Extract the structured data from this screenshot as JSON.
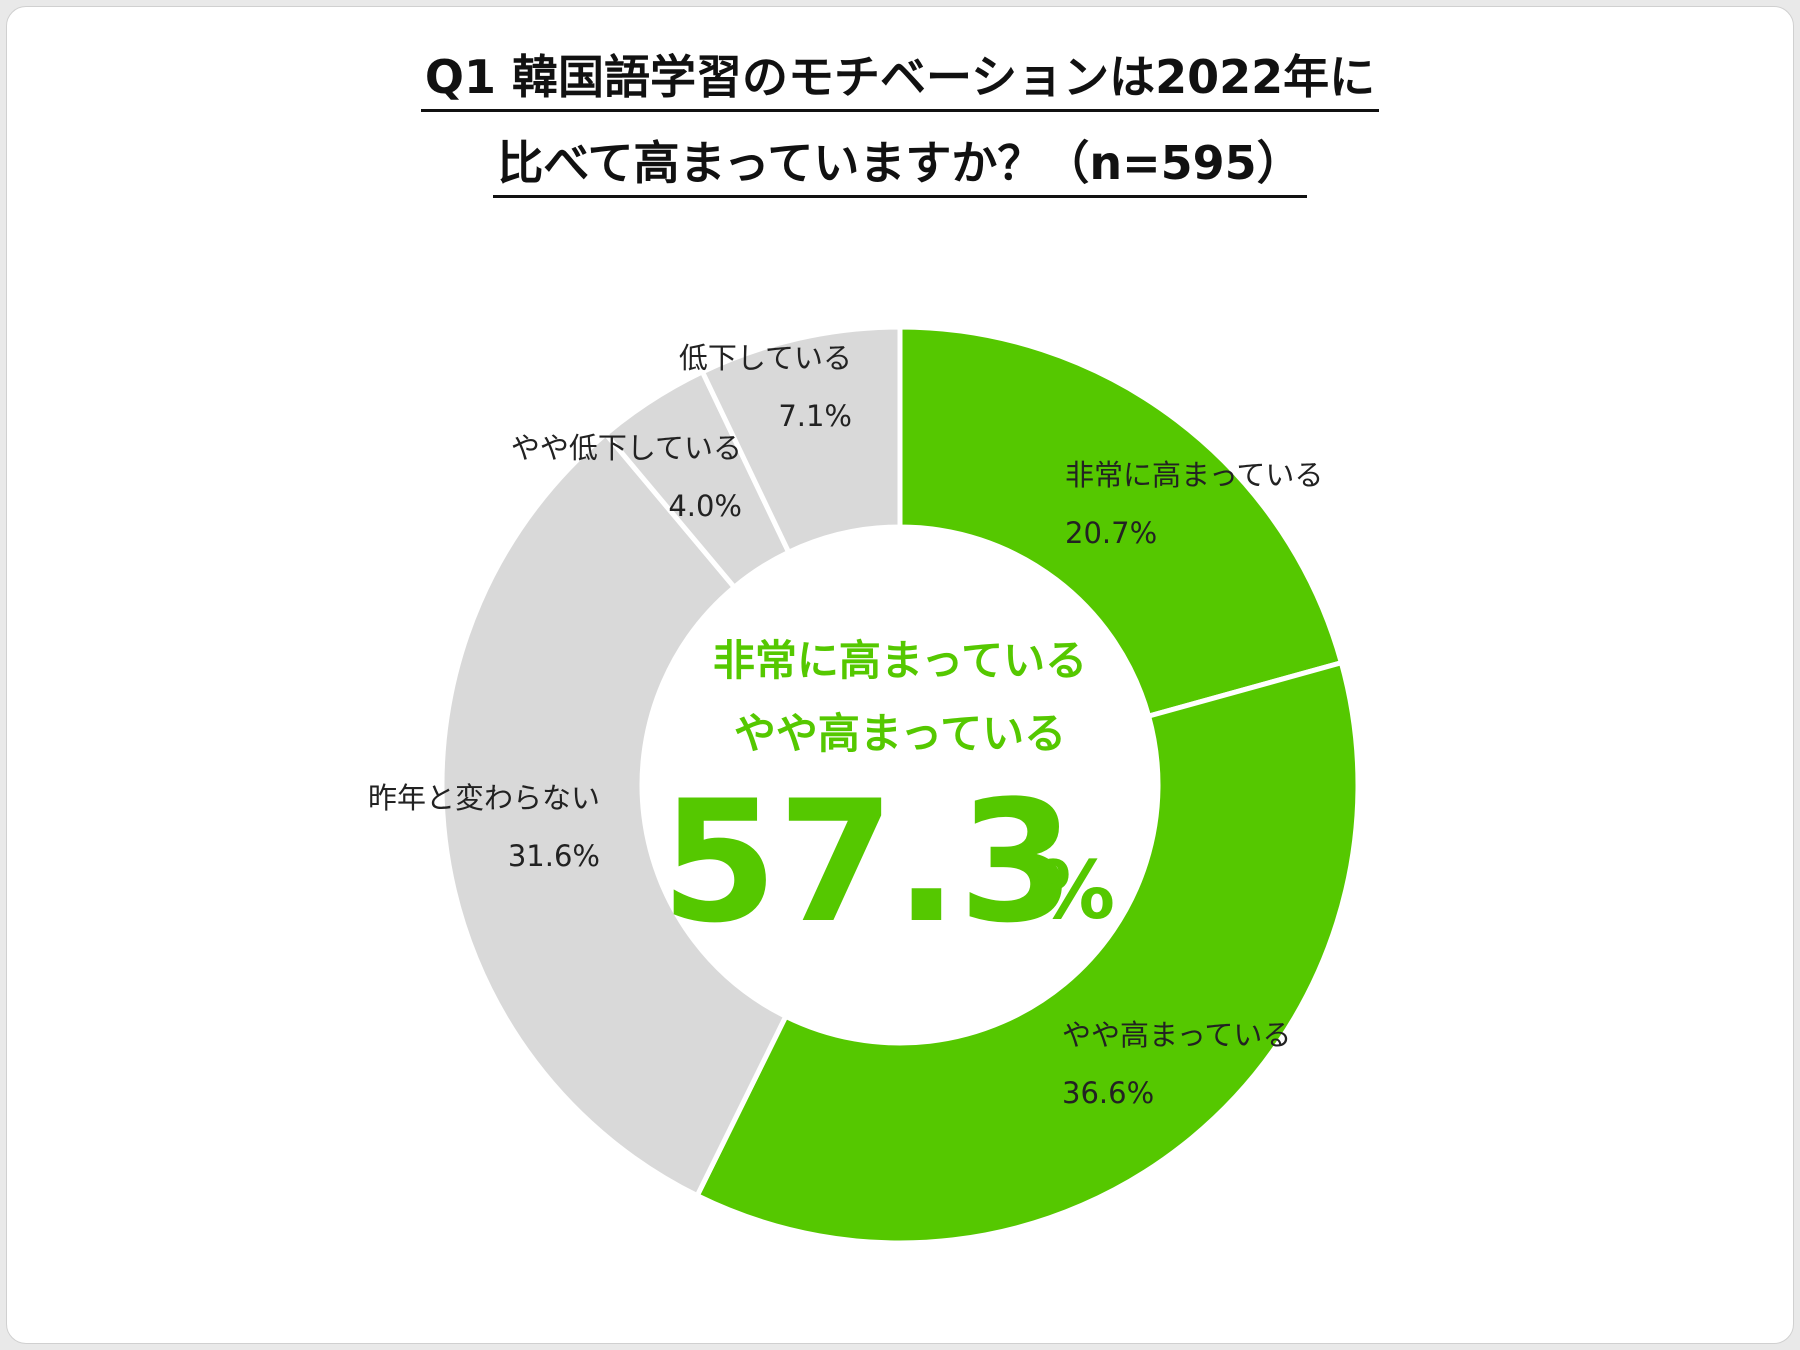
{
  "title_line1": "Q1 韓国語学習のモチベーションは2022年に",
  "title_line2": "比べて高まっていますか？（n=595）",
  "colors": {
    "accent": "#55c800",
    "neutral": "#d9d9d9",
    "separator": "#ffffff"
  },
  "center": {
    "line1": "非常に高まっている",
    "line2": "やや高まっている",
    "value": "57.3",
    "unit": "%"
  },
  "chart_data": {
    "type": "pie",
    "donut": true,
    "start": "top",
    "direction": "clockwise",
    "categories": [
      "非常に高まっている",
      "やや高まっている",
      "昨年と変わらない",
      "やや低下している",
      "低下している"
    ],
    "values": [
      20.7,
      36.6,
      31.6,
      4.0,
      7.1
    ],
    "value_labels": [
      "20.7%",
      "36.6%",
      "31.6%",
      "4.0%",
      "7.1%"
    ],
    "colors": [
      "#55c800",
      "#55c800",
      "#d9d9d9",
      "#d9d9d9",
      "#d9d9d9"
    ]
  }
}
